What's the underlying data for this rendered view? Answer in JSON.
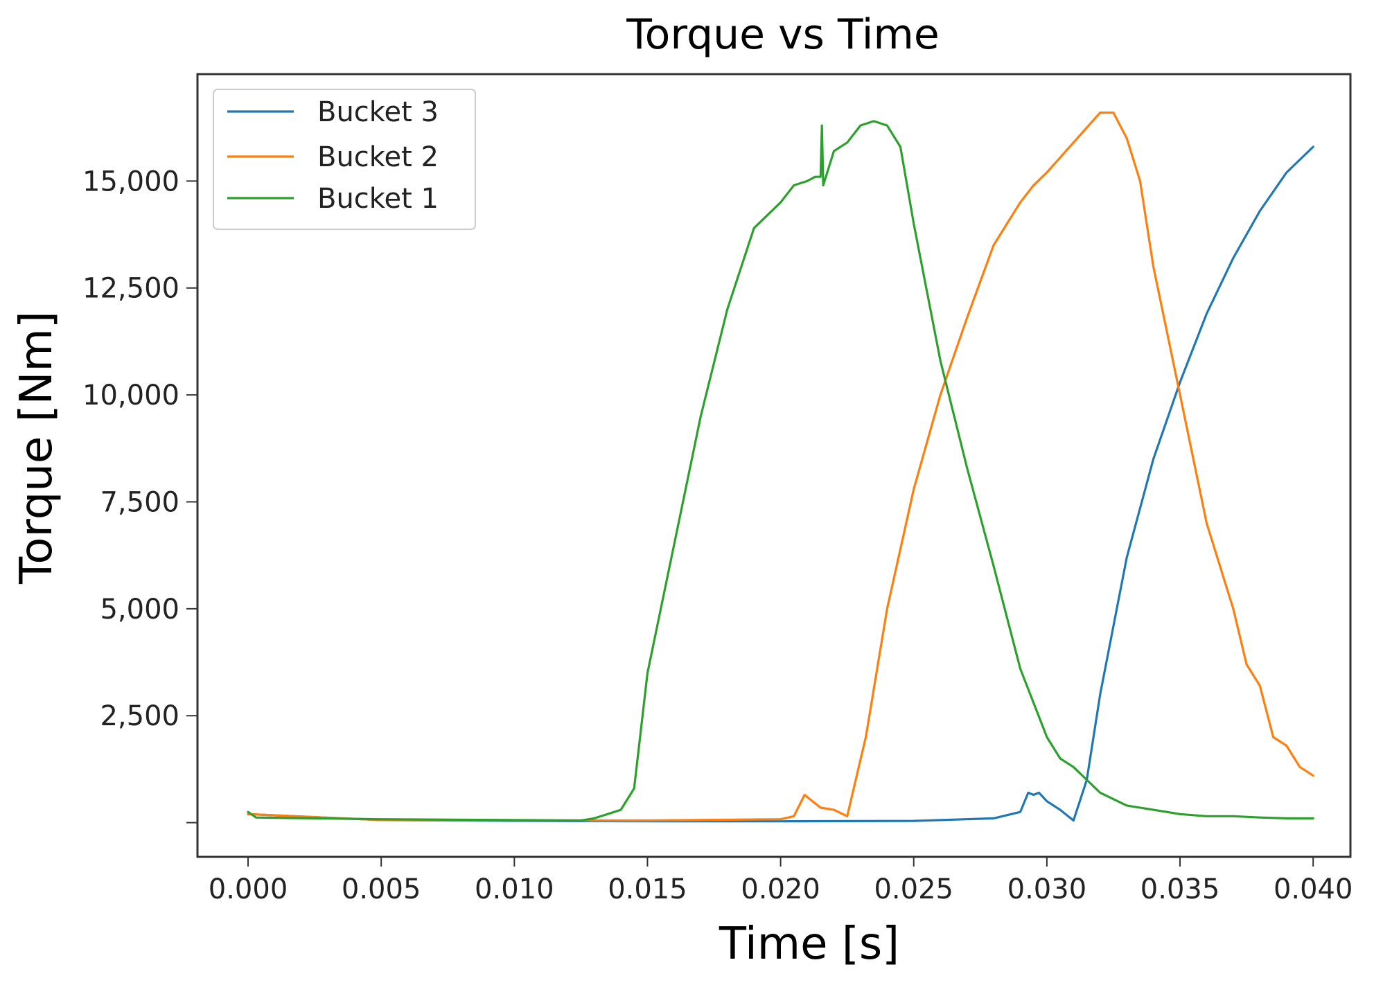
{
  "chart_data": {
    "type": "line",
    "title": "Torque vs Time",
    "xlabel": "Time [s]",
    "ylabel": "Torque [Nm]",
    "xlim": [
      -0.0019,
      0.0414
    ],
    "ylim": [
      -800,
      17500
    ],
    "xticks": [
      0.0,
      0.005,
      0.01,
      0.015,
      0.02,
      0.025,
      0.03,
      0.035,
      0.04
    ],
    "xtick_labels": [
      "0.000",
      "0.005",
      "0.010",
      "0.015",
      "0.020",
      "0.025",
      "0.030",
      "0.035",
      "0.040"
    ],
    "yticks": [
      0,
      2500,
      5000,
      7500,
      10000,
      12500,
      15000
    ],
    "ytick_labels": [
      "",
      "2,500",
      "5,000",
      "7,500",
      "10,000",
      "12,500",
      "15,000"
    ],
    "grid": false,
    "legend_position": "top-left",
    "series": [
      {
        "name": "Bucket 3",
        "color": "#1f77b4",
        "x": [
          0.0,
          0.005,
          0.01,
          0.015,
          0.02,
          0.025,
          0.028,
          0.029,
          0.0293,
          0.0295,
          0.0297,
          0.03,
          0.0305,
          0.031,
          0.0315,
          0.032,
          0.033,
          0.034,
          0.035,
          0.036,
          0.037,
          0.038,
          0.039,
          0.04
        ],
        "y": [
          200,
          60,
          40,
          30,
          30,
          40,
          100,
          250,
          700,
          650,
          700,
          500,
          300,
          50,
          1000,
          3000,
          6200,
          8500,
          10300,
          11900,
          13200,
          14300,
          15200,
          15800
        ]
      },
      {
        "name": "Bucket 2",
        "color": "#ff7f0e",
        "x": [
          0.0,
          0.005,
          0.01,
          0.015,
          0.02,
          0.0205,
          0.0209,
          0.0212,
          0.0215,
          0.022,
          0.0225,
          0.0232,
          0.024,
          0.025,
          0.026,
          0.027,
          0.028,
          0.029,
          0.0295,
          0.03,
          0.031,
          0.032,
          0.0325,
          0.033,
          0.0335,
          0.034,
          0.035,
          0.036,
          0.037,
          0.0375,
          0.038,
          0.0385,
          0.039,
          0.0395,
          0.04
        ],
        "y": [
          200,
          60,
          50,
          50,
          80,
          150,
          650,
          500,
          350,
          300,
          150,
          2000,
          5000,
          7800,
          10000,
          11800,
          13500,
          14500,
          14900,
          15200,
          15900,
          16600,
          16600,
          16000,
          15000,
          13000,
          10000,
          7000,
          5000,
          3700,
          3200,
          2000,
          1800,
          1300,
          1100
        ]
      },
      {
        "name": "Bucket 1",
        "color": "#2ca02c",
        "x": [
          0.0,
          0.0003,
          0.005,
          0.01,
          0.0125,
          0.013,
          0.0135,
          0.014,
          0.0145,
          0.015,
          0.016,
          0.017,
          0.018,
          0.019,
          0.02,
          0.0205,
          0.021,
          0.0213,
          0.0215,
          0.02155,
          0.0216,
          0.0218,
          0.022,
          0.0225,
          0.023,
          0.0235,
          0.024,
          0.0245,
          0.025,
          0.026,
          0.027,
          0.028,
          0.029,
          0.0295,
          0.03,
          0.0305,
          0.031,
          0.0315,
          0.032,
          0.033,
          0.034,
          0.035,
          0.036,
          0.037,
          0.038,
          0.039,
          0.04
        ],
        "y": [
          250,
          120,
          80,
          60,
          50,
          100,
          200,
          300,
          800,
          3500,
          6500,
          9500,
          12000,
          13900,
          14500,
          14900,
          15000,
          15100,
          15100,
          16300,
          14900,
          15300,
          15700,
          15900,
          16300,
          16400,
          16300,
          15800,
          14000,
          10800,
          8300,
          6000,
          3600,
          2800,
          2000,
          1500,
          1300,
          1000,
          700,
          400,
          300,
          200,
          150,
          150,
          120,
          100,
          100
        ]
      }
    ]
  }
}
